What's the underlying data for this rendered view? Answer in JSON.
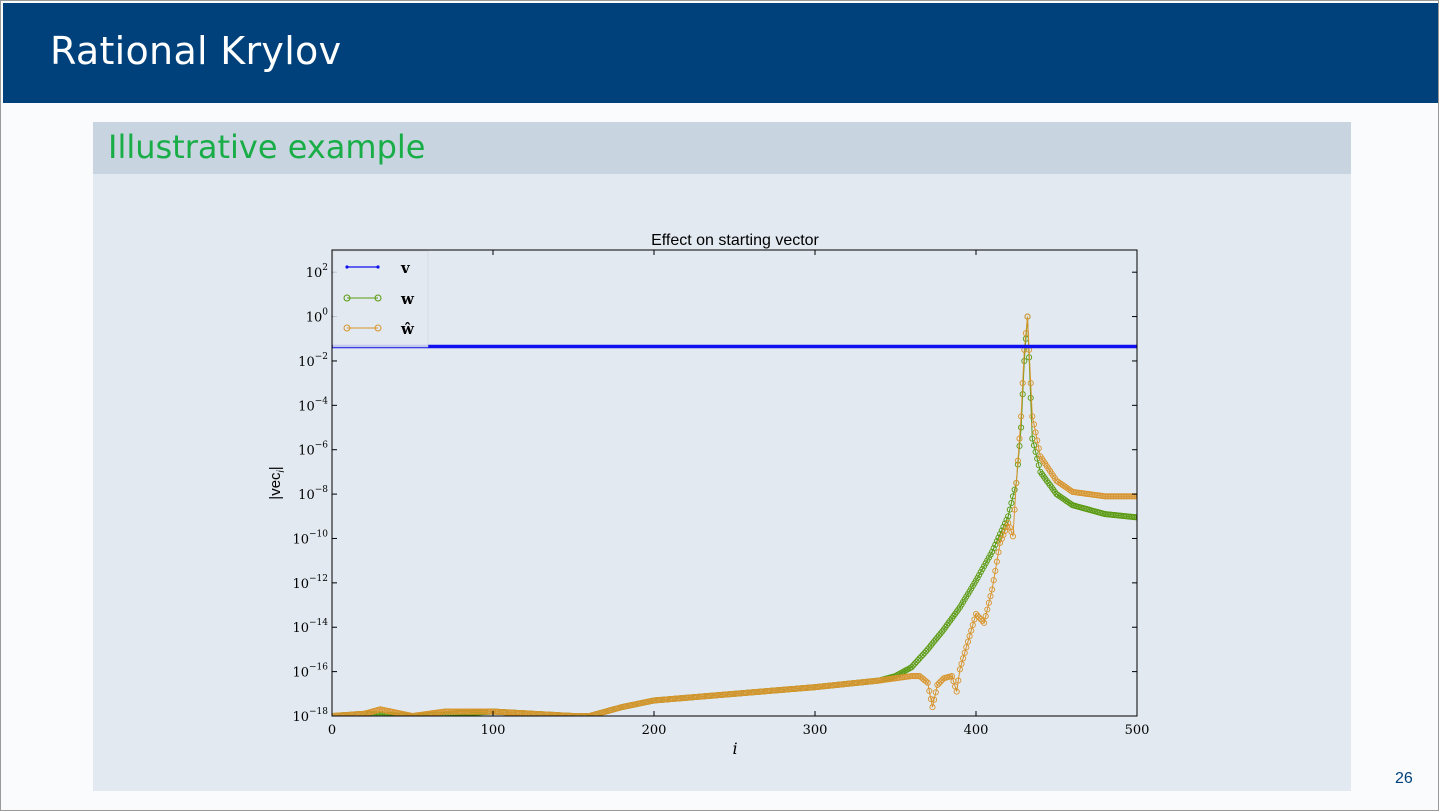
{
  "slide": {
    "title": "Rational Krylov",
    "block_title": "Illustrative example",
    "page_number": "26"
  },
  "colors": {
    "header_bg": "#00417b",
    "block_title": "#19ad47",
    "block_bg": "#e2e9f0",
    "block_head_bg": "#c8d5e1",
    "series_v": "#1010ee",
    "series_w": "#5a9a10",
    "series_what": "#d8952e"
  },
  "chart_data": {
    "type": "line",
    "title": "Effect on starting vector",
    "xlabel": "i",
    "ylabel_main": "|vec",
    "ylabel_sub": "i",
    "ylabel_end": "|",
    "xlim": [
      0,
      500
    ],
    "ylim_log10": [
      -18,
      3
    ],
    "y_scale": "log",
    "x_ticks": [
      "0",
      "100",
      "200",
      "300",
      "400",
      "500"
    ],
    "y_ticks": [
      {
        "base": "10",
        "exp": "2"
      },
      {
        "base": "10",
        "exp": "0"
      },
      {
        "base": "10",
        "exp": "−2"
      },
      {
        "base": "10",
        "exp": "−4"
      },
      {
        "base": "10",
        "exp": "−6"
      },
      {
        "base": "10",
        "exp": "−8"
      },
      {
        "base": "10",
        "exp": "−10"
      },
      {
        "base": "10",
        "exp": "−12"
      },
      {
        "base": "10",
        "exp": "−14"
      },
      {
        "base": "10",
        "exp": "−16"
      },
      {
        "base": "10",
        "exp": "−18"
      }
    ],
    "legend_position": "top-left",
    "series": [
      {
        "name": "v",
        "marker": "dot",
        "x": [
          0,
          500
        ],
        "log10_y": [
          -1.35,
          -1.35
        ]
      },
      {
        "name": "w",
        "marker": "circle",
        "x": [
          0,
          20,
          50,
          100,
          150,
          160,
          180,
          200,
          250,
          300,
          340,
          350,
          360,
          370,
          380,
          390,
          400,
          410,
          420,
          425,
          428,
          430,
          432,
          435,
          440,
          450,
          460,
          480,
          500
        ],
        "log10_y": [
          -18,
          -17.9,
          -18,
          -17.8,
          -18,
          -18,
          -17.6,
          -17.3,
          -17,
          -16.7,
          -16.4,
          -16.2,
          -15.8,
          -15,
          -14.1,
          -13.1,
          -11.9,
          -10.6,
          -9,
          -7.5,
          -5,
          -2,
          0,
          -5.5,
          -7,
          -8,
          -8.5,
          -8.9,
          -9.05
        ]
      },
      {
        "name": "ŵ",
        "marker": "circle",
        "x": [
          0,
          20,
          30,
          50,
          70,
          100,
          150,
          160,
          180,
          200,
          250,
          300,
          340,
          360,
          365,
          370,
          373,
          376,
          380,
          385,
          388,
          390,
          400,
          405,
          410,
          415,
          420,
          423,
          425,
          428,
          430,
          432,
          435,
          440,
          450,
          460,
          480,
          500
        ],
        "log10_y": [
          -18,
          -17.9,
          -17.7,
          -18,
          -17.8,
          -17.8,
          -18,
          -18,
          -17.6,
          -17.3,
          -17,
          -16.7,
          -16.4,
          -16.2,
          -16.2,
          -16.5,
          -17.6,
          -16.6,
          -16.3,
          -16.2,
          -16.9,
          -15.9,
          -13.4,
          -13.8,
          -12.3,
          -10.2,
          -9.3,
          -9.9,
          -7.5,
          -4.5,
          -1.5,
          0,
          -4.5,
          -6.3,
          -7.4,
          -7.9,
          -8.1,
          -8.1
        ]
      }
    ]
  }
}
